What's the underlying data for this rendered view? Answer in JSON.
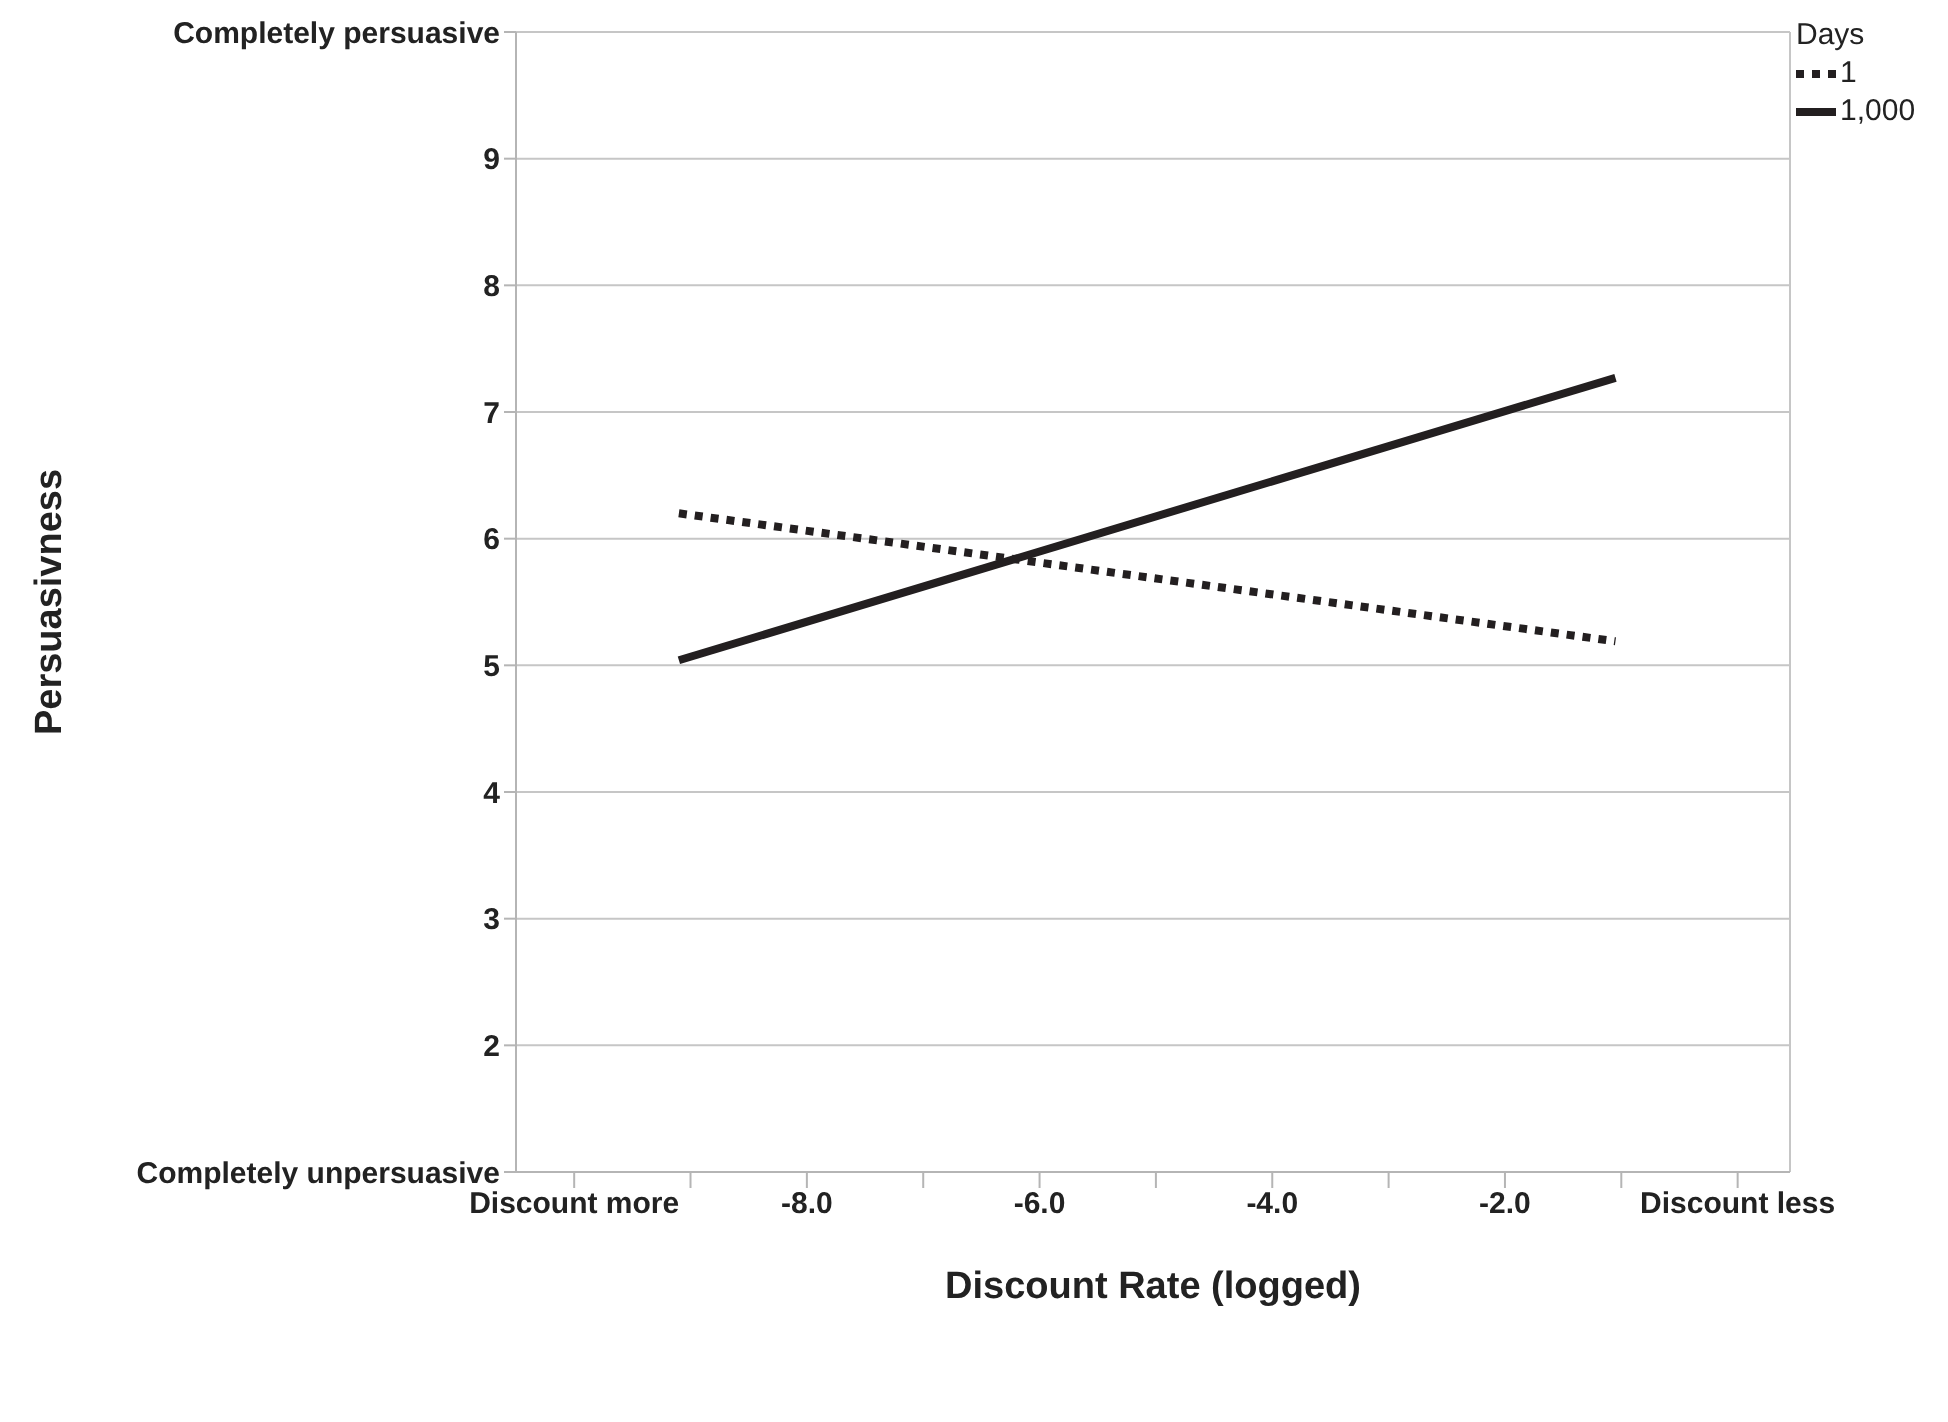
{
  "chart_data": {
    "type": "line",
    "xlabel": "Discount Rate (logged)",
    "ylabel": "Persuasivness",
    "legend_title": "Days",
    "xlim": [
      -10.5,
      0.45
    ],
    "xticks": [
      {
        "value": -10,
        "label": "Discount more"
      },
      {
        "value": -9,
        "label": null
      },
      {
        "value": -8,
        "label": "-8.0"
      },
      {
        "value": -7,
        "label": null
      },
      {
        "value": -6,
        "label": "-6.0"
      },
      {
        "value": -5,
        "label": null
      },
      {
        "value": -4,
        "label": "-4.0"
      },
      {
        "value": -3,
        "label": null
      },
      {
        "value": -2,
        "label": "-2.0"
      },
      {
        "value": -1,
        "label": null
      },
      {
        "value": 0,
        "label": "Discount less"
      }
    ],
    "ylim": [
      1,
      10
    ],
    "yticks": [
      {
        "value": 1,
        "label": "Completely unpersuasive"
      },
      2,
      3,
      4,
      5,
      6,
      7,
      8,
      9,
      {
        "value": 10,
        "label": "Completely persuasive"
      }
    ],
    "grid": "y",
    "legend": "top right",
    "marker": "none",
    "x": [
      -9.1,
      -1.05
    ],
    "series": [
      {
        "name": "1",
        "color": "#231f20",
        "line_style": "dotted",
        "values": [
          6.2,
          5.19
        ]
      },
      {
        "name": "1,000",
        "color": "#231f20",
        "line_style": "solid",
        "values": [
          5.04,
          7.27
        ]
      }
    ]
  }
}
